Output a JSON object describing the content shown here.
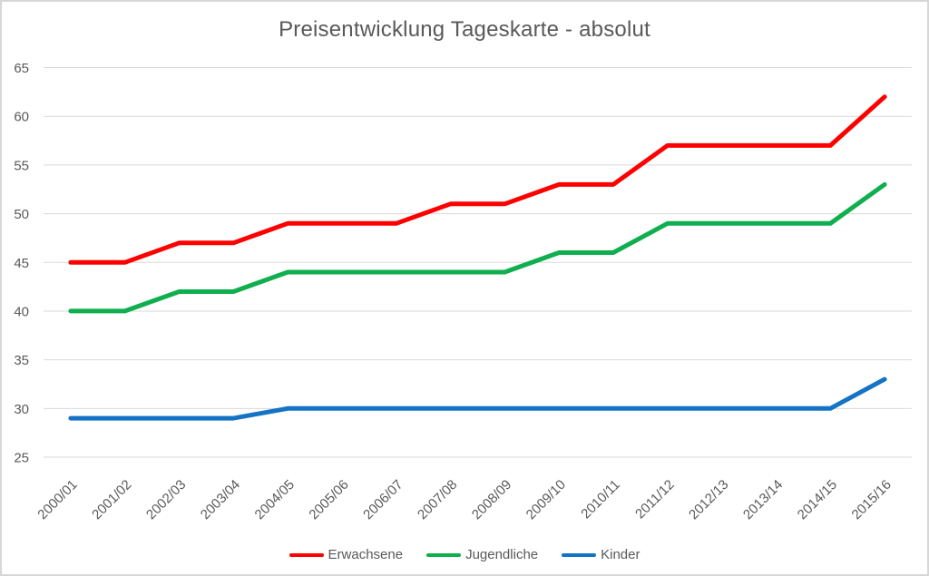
{
  "chart_data": {
    "type": "line",
    "title": "Preisentwicklung Tageskarte - absolut",
    "categories": [
      "2000/01",
      "2001/02",
      "2002/03",
      "2003/04",
      "2004/05",
      "2005/06",
      "2006/07",
      "2007/08",
      "2008/09",
      "2009/10",
      "2010/11",
      "2011/12",
      "2012/13",
      "2013/14",
      "2014/15",
      "2015/16"
    ],
    "series": [
      {
        "name": "Erwachsene",
        "color": "#fe0000",
        "values": [
          45,
          45,
          47,
          47,
          49,
          49,
          49,
          51,
          51,
          53,
          53,
          57,
          57,
          57,
          57,
          62
        ]
      },
      {
        "name": "Jugendliche",
        "color": "#0fae4f",
        "values": [
          40,
          40,
          42,
          42,
          44,
          44,
          44,
          44,
          44,
          46,
          46,
          49,
          49,
          49,
          49,
          53
        ]
      },
      {
        "name": "Kinder",
        "color": "#1473c4",
        "values": [
          29,
          29,
          29,
          29,
          30,
          30,
          30,
          30,
          30,
          30,
          30,
          30,
          30,
          30,
          30,
          33
        ]
      }
    ],
    "xlabel": "",
    "ylabel": "",
    "ylim": [
      25,
      65
    ],
    "ytick_step": 5,
    "yticks": [
      25,
      30,
      35,
      40,
      45,
      50,
      55,
      60,
      65
    ],
    "grid": "horizontal",
    "legend_position": "bottom",
    "text_color": "#595959",
    "gridline_color": "#d9d9d9"
  }
}
